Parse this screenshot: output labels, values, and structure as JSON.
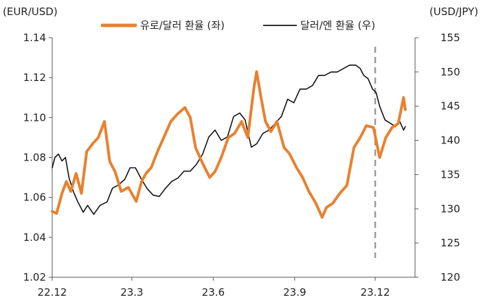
{
  "chart_data": {
    "type": "line",
    "left_axis_label": "(EUR/USD)",
    "right_axis_label": "(USD/JPY)",
    "x_ticks": [
      "22.12",
      "23.3",
      "23.6",
      "23.9",
      "23.12"
    ],
    "y_left": {
      "min": 1.02,
      "max": 1.14,
      "ticks": [
        "1.02",
        "1.04",
        "1.06",
        "1.08",
        "1.10",
        "1.12",
        "1.14"
      ]
    },
    "y_right": {
      "min": 120,
      "max": 155,
      "ticks": [
        "120",
        "125",
        "130",
        "135",
        "140",
        "145",
        "150",
        "155"
      ]
    },
    "series": [
      {
        "name": "유로/달러 환율 (좌)",
        "axis": "left",
        "color": "#E8812F",
        "x": [
          "2022-12-01",
          "2022-12-06",
          "2022-12-12",
          "2022-12-17",
          "2022-12-22",
          "2022-12-28",
          "2023-01-03",
          "2023-01-09",
          "2023-01-16",
          "2023-01-22",
          "2023-01-29",
          "2023-02-04",
          "2023-02-10",
          "2023-02-17",
          "2023-02-25",
          "2023-03-06",
          "2023-03-12",
          "2023-03-17",
          "2023-03-23",
          "2023-03-30",
          "2023-04-06",
          "2023-04-14",
          "2023-04-22",
          "2023-04-30",
          "2023-05-06",
          "2023-05-12",
          "2023-05-20",
          "2023-05-28",
          "2023-06-03",
          "2023-06-10",
          "2023-06-18",
          "2023-06-25",
          "2023-07-03",
          "2023-07-10",
          "2023-07-17",
          "2023-07-20",
          "2023-07-25",
          "2023-07-30",
          "2023-08-05",
          "2023-08-12",
          "2023-08-20",
          "2023-08-26",
          "2023-09-03",
          "2023-09-10",
          "2023-09-17",
          "2023-09-25",
          "2023-10-02",
          "2023-10-07",
          "2023-10-14",
          "2023-10-22",
          "2023-10-30",
          "2023-11-07",
          "2023-11-14",
          "2023-11-21",
          "2023-11-29",
          "2023-12-06",
          "2023-12-13",
          "2023-12-20",
          "2023-12-27",
          "2024-01-02",
          "2024-01-04"
        ],
        "values": [
          1.053,
          1.052,
          1.062,
          1.068,
          1.063,
          1.072,
          1.062,
          1.083,
          1.087,
          1.09,
          1.098,
          1.078,
          1.073,
          1.063,
          1.065,
          1.058,
          1.068,
          1.072,
          1.075,
          1.083,
          1.09,
          1.098,
          1.102,
          1.105,
          1.1,
          1.085,
          1.077,
          1.07,
          1.073,
          1.08,
          1.09,
          1.092,
          1.098,
          1.09,
          1.115,
          1.123,
          1.11,
          1.098,
          1.093,
          1.098,
          1.085,
          1.082,
          1.075,
          1.07,
          1.063,
          1.057,
          1.05,
          1.055,
          1.057,
          1.062,
          1.066,
          1.085,
          1.09,
          1.096,
          1.095,
          1.08,
          1.09,
          1.095,
          1.097,
          1.11,
          1.104
        ]
      },
      {
        "name": "달러/엔 환율 (우)",
        "axis": "right",
        "color": "#111111",
        "x": [
          "2022-12-01",
          "2022-12-04",
          "2022-12-08",
          "2022-12-12",
          "2022-12-16",
          "2022-12-20",
          "2022-12-25",
          "2022-12-30",
          "2023-01-05",
          "2023-01-10",
          "2023-01-17",
          "2023-01-24",
          "2023-02-01",
          "2023-02-07",
          "2023-02-14",
          "2023-02-21",
          "2023-02-27",
          "2023-03-05",
          "2023-03-11",
          "2023-03-18",
          "2023-03-25",
          "2023-04-01",
          "2023-04-08",
          "2023-04-15",
          "2023-04-22",
          "2023-04-29",
          "2023-05-06",
          "2023-05-13",
          "2023-05-20",
          "2023-05-27",
          "2023-06-03",
          "2023-06-10",
          "2023-06-17",
          "2023-06-24",
          "2023-07-01",
          "2023-07-07",
          "2023-07-14",
          "2023-07-20",
          "2023-07-27",
          "2023-08-03",
          "2023-08-10",
          "2023-08-17",
          "2023-08-24",
          "2023-08-31",
          "2023-09-07",
          "2023-09-14",
          "2023-09-21",
          "2023-09-28",
          "2023-10-05",
          "2023-10-12",
          "2023-10-19",
          "2023-10-26",
          "2023-11-02",
          "2023-11-09",
          "2023-11-14",
          "2023-11-18",
          "2023-11-23",
          "2023-11-28",
          "2023-12-02",
          "2023-12-06",
          "2023-12-12",
          "2023-12-18",
          "2023-12-24",
          "2023-12-28",
          "2024-01-02",
          "2024-01-04"
        ],
        "values": [
          136,
          137.5,
          138,
          137,
          137.5,
          134.5,
          132.5,
          131,
          129.5,
          130.5,
          129.2,
          130.5,
          131,
          133,
          133.5,
          134.3,
          136,
          136,
          134.5,
          133,
          132,
          131.8,
          133,
          134,
          134.5,
          135.5,
          135.5,
          136.5,
          138,
          140.5,
          141.5,
          140,
          140.5,
          143.5,
          144,
          143,
          139,
          139.5,
          141,
          141.5,
          142.5,
          143.5,
          146,
          145.5,
          147.5,
          147.5,
          148,
          149.5,
          149.5,
          150,
          150,
          150.5,
          151,
          151,
          150.5,
          149.5,
          149,
          147.5,
          147,
          145,
          143,
          142.5,
          142,
          143,
          141.5,
          142
        ]
      }
    ],
    "vertical_marker": {
      "x": "2023-12-01",
      "style": "dashed",
      "color": "#9a9a9a"
    },
    "legend_position": "top"
  }
}
